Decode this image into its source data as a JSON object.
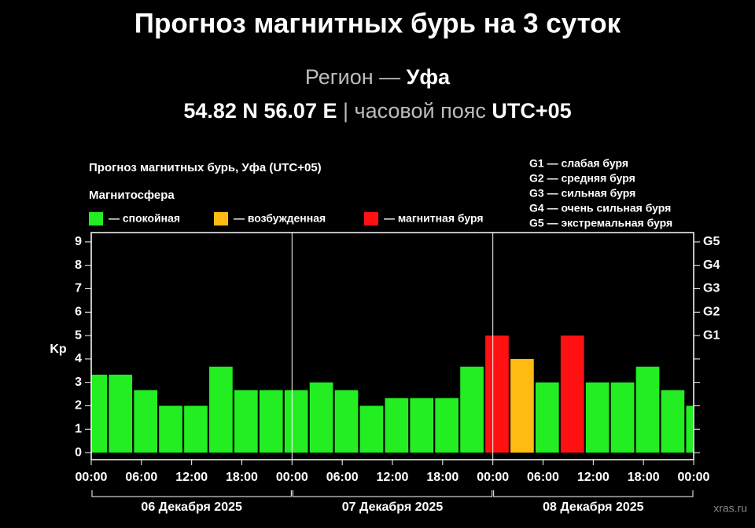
{
  "header": {
    "title": "Прогноз магнитных бурь на 3 суток",
    "region_label": "Регион —",
    "region": "Уфа",
    "coords": "54.82 N 56.07 E",
    "separator": "|",
    "tz_label": "часовой пояс",
    "tz": "UTC+05"
  },
  "source": "xras.ru",
  "chart_data": {
    "type": "bar",
    "title": "Прогноз магнитных бурь, Уфа (UTC+05)",
    "legend_title": "Магнитосфера",
    "legend": [
      {
        "name": "— спокойная",
        "color": "#22ee22"
      },
      {
        "name": "— возбужденная",
        "color": "#ffbb11"
      },
      {
        "name": "— магнитная буря",
        "color": "#ff1111"
      }
    ],
    "scale_notes": [
      "G1 — слабая буря",
      "G2 — средняя буря",
      "G3 — сильная буря",
      "G4 — очень сильная буря",
      "G5 — экстремальная буря"
    ],
    "ylabel": "Kp",
    "x": [
      0.5,
      3.5,
      6.5,
      9.5,
      12.5,
      15.5,
      18.5,
      21.5,
      24.5,
      27.5,
      30.5,
      33.5,
      36.5,
      39.5,
      42.5,
      45.5,
      48.5,
      51.5,
      54.5,
      57.5,
      60.5,
      63.5,
      66.5,
      69.5,
      72.5
    ],
    "values": [
      3.33,
      3.33,
      2.67,
      2,
      2,
      3.67,
      2.67,
      2.67,
      2.67,
      3,
      2.67,
      2,
      2.33,
      2.33,
      2.33,
      3.67,
      5,
      4,
      3,
      5,
      3,
      3,
      3.67,
      2.67,
      2
    ],
    "colors": [
      "#22ee22",
      "#22ee22",
      "#22ee22",
      "#22ee22",
      "#22ee22",
      "#22ee22",
      "#22ee22",
      "#22ee22",
      "#22ee22",
      "#22ee22",
      "#22ee22",
      "#22ee22",
      "#22ee22",
      "#22ee22",
      "#22ee22",
      "#22ee22",
      "#ff1111",
      "#ffbb11",
      "#22ee22",
      "#ff1111",
      "#22ee22",
      "#22ee22",
      "#22ee22",
      "#22ee22",
      "#22ee22"
    ],
    "xlim": [
      0,
      72
    ],
    "ylim": [
      -0.3,
      9.4
    ],
    "xticks": [
      {
        "value": 0,
        "label": "00:00"
      },
      {
        "value": 6,
        "label": "06:00"
      },
      {
        "value": 12,
        "label": "12:00"
      },
      {
        "value": 18,
        "label": "18:00"
      },
      {
        "value": 24,
        "label": "00:00"
      },
      {
        "value": 30,
        "label": "06:00"
      },
      {
        "value": 36,
        "label": "12:00"
      },
      {
        "value": 42,
        "label": "18:00"
      },
      {
        "value": 48,
        "label": "00:00"
      },
      {
        "value": 54,
        "label": "06:00"
      },
      {
        "value": 60,
        "label": "12:00"
      },
      {
        "value": 66,
        "label": "18:00"
      },
      {
        "value": 72,
        "label": "00:00"
      }
    ],
    "yticks": [
      0,
      1,
      2,
      3,
      4,
      5,
      6,
      7,
      8,
      9
    ],
    "y2ticks": [
      {
        "value": 5,
        "label": "G1"
      },
      {
        "value": 6,
        "label": "G2"
      },
      {
        "value": 7,
        "label": "G3"
      },
      {
        "value": 8,
        "label": "G4"
      },
      {
        "value": 9,
        "label": "G5"
      }
    ],
    "days": [
      "06 Декабря 2025",
      "07 Декабря 2025",
      "08 Декабря 2025"
    ]
  }
}
